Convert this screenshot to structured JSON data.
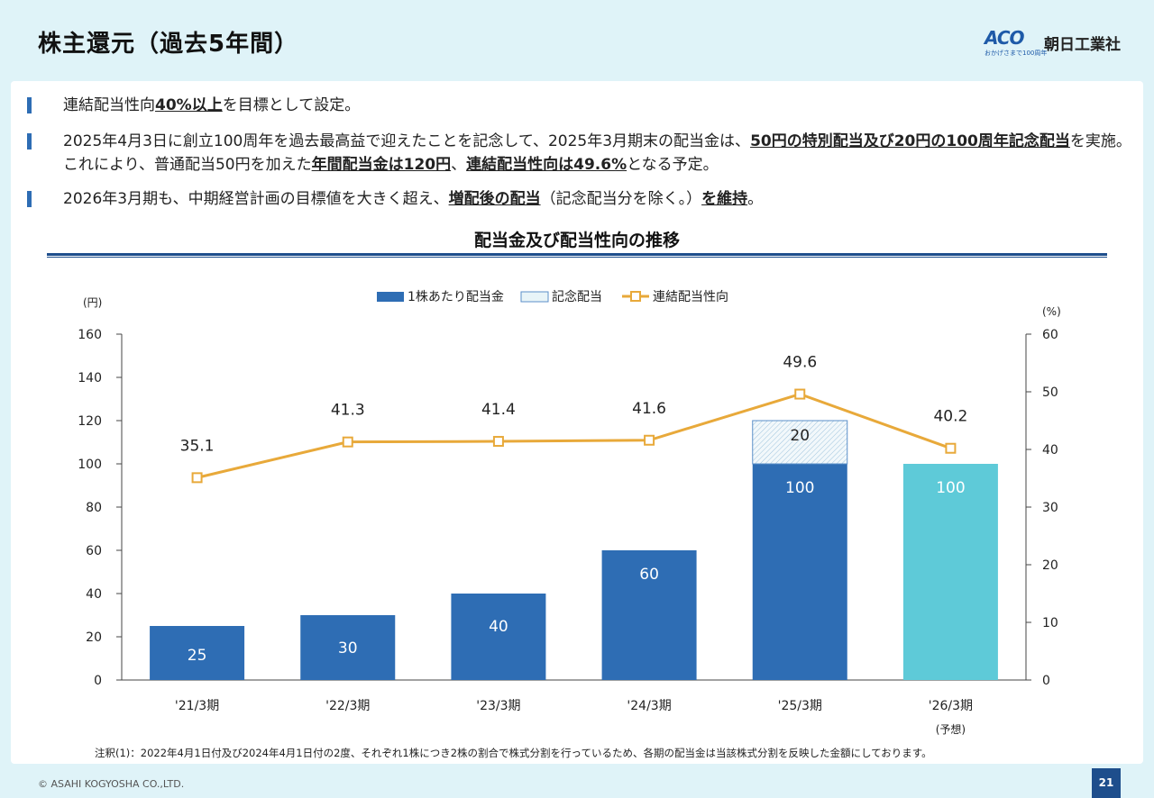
{
  "header": {
    "title": "株主還元（過去5年間）",
    "logo_mark": "ACO",
    "logo_sub": "おかげさまで100周年",
    "logo_name": "朝日工業社"
  },
  "bullets": [
    [
      {
        "t": "連結配当性向"
      },
      {
        "t": "40%以上",
        "em": true
      },
      {
        "t": "を目標として設定。"
      }
    ],
    [
      {
        "t": "2025年4月3日に創立100周年を過去最高益で迎えたことを記念して、2025年3月期末の配当金は、"
      },
      {
        "t": "50円の特別配当及び20円の100周年記念配当",
        "em": true
      },
      {
        "t": "を実施。これにより、普通配当50円を加えた"
      },
      {
        "t": "年間配当金は120円",
        "em": true
      },
      {
        "t": "、"
      },
      {
        "t": "連結配当性向は49.6%",
        "em": true
      },
      {
        "t": "となる予定。"
      }
    ],
    [
      {
        "t": "2026年3月期も、中期経営計画の目標値を大きく超え、"
      },
      {
        "t": "増配後の配当",
        "em": true
      },
      {
        "t": "（記念配当分を除く。）"
      },
      {
        "t": "を維持",
        "em": true
      },
      {
        "t": "。"
      }
    ]
  ],
  "chart_data": {
    "type": "bar",
    "title": "配当金及び配当性向の推移",
    "categories": [
      "'21/3期",
      "'22/3期",
      "'23/3期",
      "'24/3期",
      "'25/3期",
      "'26/3期"
    ],
    "category_notes": [
      "",
      "",
      "",
      "",
      "",
      "(予想)"
    ],
    "ylabel": "(円)",
    "y2label": "(%)",
    "ylim": [
      0,
      160
    ],
    "y2lim": [
      0,
      60
    ],
    "yticks": [
      0,
      20,
      40,
      60,
      80,
      100,
      120,
      140,
      160
    ],
    "y2ticks": [
      0,
      10,
      20,
      30,
      40,
      50,
      60
    ],
    "legend_position": "top-center",
    "series": [
      {
        "name": "1株あたり配当金",
        "kind": "bar",
        "values": [
          25,
          30,
          40,
          60,
          100,
          100
        ],
        "labels": [
          "25",
          "30",
          "40",
          "60",
          "100",
          "100"
        ],
        "color": "#2e6db4",
        "forecast_color": "#5ecad8"
      },
      {
        "name": "記念配当",
        "kind": "bar-stacked",
        "values": [
          0,
          0,
          0,
          0,
          20,
          0
        ],
        "labels": [
          "",
          "",
          "",
          "",
          "20",
          ""
        ],
        "color": "#e8f4f8",
        "edge": "#5b8fc9"
      },
      {
        "name": "連結配当性向",
        "kind": "line",
        "axis": "y2",
        "values": [
          35.1,
          41.3,
          41.4,
          41.6,
          49.6,
          40.2
        ],
        "labels": [
          "35.1",
          "41.3",
          "41.4",
          "41.6",
          "49.6",
          "40.2"
        ],
        "color": "#e8a93a"
      }
    ]
  },
  "footer": {
    "note": "注釈(1)：2022年4月1日付及び2024年4月1日付の2度、それぞれ1株につき2株の割合で株式分割を行っているため、各期の配当金は当該株式分割を反映した金額にしております。",
    "copyright": "© ASAHI KOGYOSHA CO.,LTD.",
    "page": "21"
  }
}
